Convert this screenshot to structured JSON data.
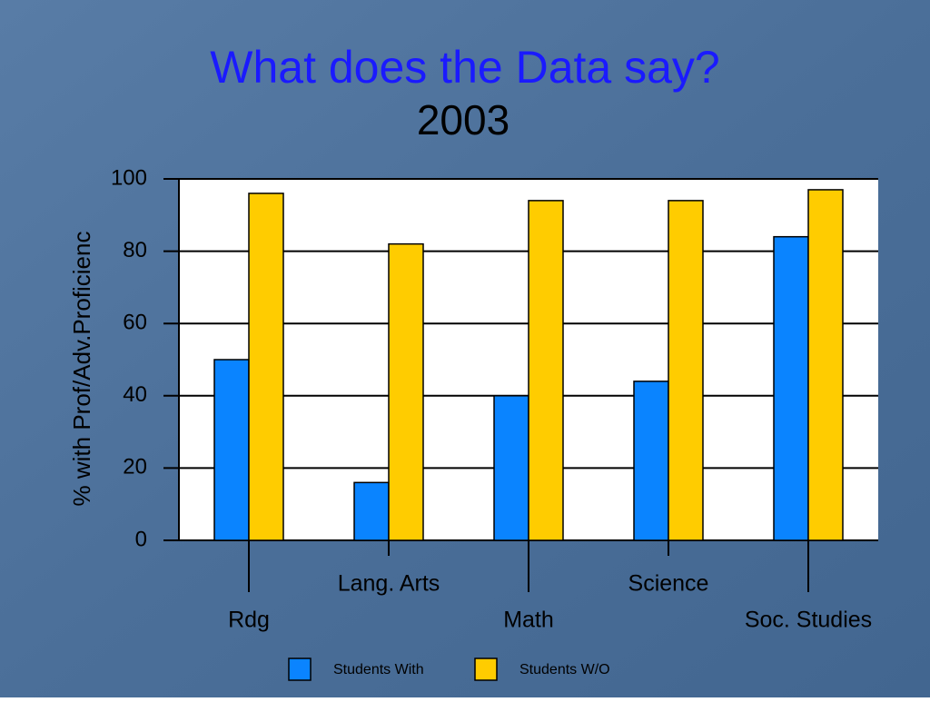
{
  "chart_data": {
    "type": "bar",
    "title": "What does the Data say?",
    "subtitle": "2003",
    "y_label": "% with Prof/Adv.Proficienc",
    "categories": [
      "Rdg",
      "Lang. Arts",
      "Math",
      "Science",
      "Soc. Studies"
    ],
    "series": [
      {
        "name": "Students With",
        "color": "#0a84ff",
        "values": [
          50,
          16,
          40,
          44,
          84
        ]
      },
      {
        "name": "Students W/O",
        "color": "#ffcc00",
        "values": [
          96,
          82,
          94,
          94,
          97
        ]
      }
    ],
    "ylim": [
      0,
      100
    ],
    "yticks": [
      0,
      20,
      40,
      60,
      80,
      100
    ],
    "grid": true
  }
}
